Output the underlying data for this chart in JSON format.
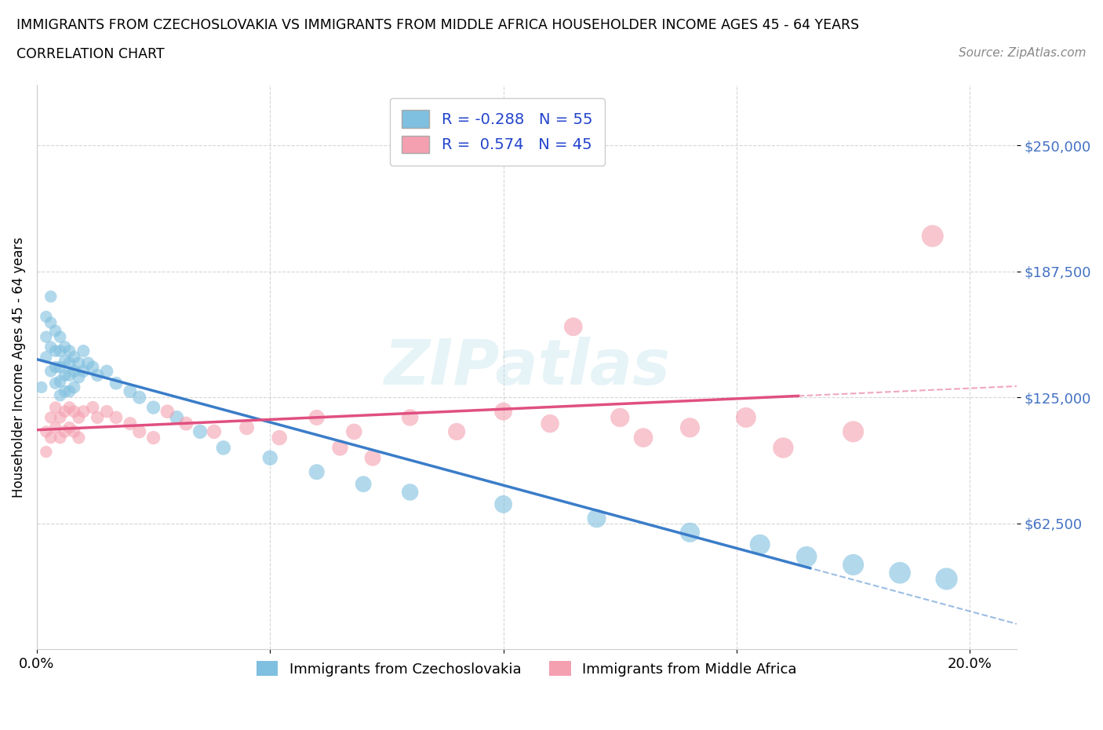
{
  "title_line1": "IMMIGRANTS FROM CZECHOSLOVAKIA VS IMMIGRANTS FROM MIDDLE AFRICA HOUSEHOLDER INCOME AGES 45 - 64 YEARS",
  "title_line2": "CORRELATION CHART",
  "source_text": "Source: ZipAtlas.com",
  "ylabel": "Householder Income Ages 45 - 64 years",
  "xlim": [
    0.0,
    0.21
  ],
  "ylim": [
    0,
    280000
  ],
  "yticks": [
    62500,
    125000,
    187500,
    250000
  ],
  "ytick_labels": [
    "$62,500",
    "$125,000",
    "$187,500",
    "$250,000"
  ],
  "xticks": [
    0.0,
    0.05,
    0.1,
    0.15,
    0.2
  ],
  "xtick_labels": [
    "0.0%",
    "",
    "",
    "",
    "20.0%"
  ],
  "color_czech": "#7fbfdf",
  "color_africa": "#f4a0b0",
  "regression_color_czech": "#3a7dc9",
  "regression_color_africa": "#e05080",
  "watermark_text": "ZIPatlas",
  "czech_x": [
    0.001,
    0.002,
    0.002,
    0.002,
    0.003,
    0.003,
    0.003,
    0.003,
    0.004,
    0.004,
    0.004,
    0.004,
    0.005,
    0.005,
    0.005,
    0.005,
    0.005,
    0.006,
    0.006,
    0.006,
    0.006,
    0.007,
    0.007,
    0.007,
    0.007,
    0.008,
    0.008,
    0.008,
    0.009,
    0.009,
    0.01,
    0.01,
    0.011,
    0.012,
    0.013,
    0.015,
    0.017,
    0.02,
    0.022,
    0.025,
    0.03,
    0.035,
    0.04,
    0.05,
    0.06,
    0.07,
    0.08,
    0.1,
    0.12,
    0.14,
    0.155,
    0.165,
    0.175,
    0.185,
    0.195
  ],
  "czech_y": [
    130000,
    165000,
    155000,
    145000,
    175000,
    162000,
    150000,
    138000,
    158000,
    148000,
    140000,
    132000,
    155000,
    148000,
    140000,
    133000,
    126000,
    150000,
    143000,
    136000,
    128000,
    148000,
    142000,
    136000,
    128000,
    145000,
    138000,
    130000,
    142000,
    135000,
    148000,
    138000,
    142000,
    140000,
    136000,
    138000,
    132000,
    128000,
    125000,
    120000,
    115000,
    108000,
    100000,
    95000,
    88000,
    82000,
    78000,
    72000,
    65000,
    58000,
    52000,
    46000,
    42000,
    38000,
    35000
  ],
  "africa_x": [
    0.002,
    0.002,
    0.003,
    0.003,
    0.004,
    0.004,
    0.005,
    0.005,
    0.006,
    0.006,
    0.007,
    0.007,
    0.008,
    0.008,
    0.009,
    0.009,
    0.01,
    0.012,
    0.013,
    0.015,
    0.017,
    0.02,
    0.022,
    0.025,
    0.028,
    0.032,
    0.038,
    0.045,
    0.052,
    0.06,
    0.065,
    0.068,
    0.072,
    0.08,
    0.09,
    0.1,
    0.11,
    0.115,
    0.125,
    0.13,
    0.14,
    0.152,
    0.16,
    0.175,
    0.192
  ],
  "africa_y": [
    108000,
    98000,
    115000,
    105000,
    120000,
    110000,
    115000,
    105000,
    118000,
    108000,
    120000,
    110000,
    118000,
    108000,
    115000,
    105000,
    118000,
    120000,
    115000,
    118000,
    115000,
    112000,
    108000,
    105000,
    118000,
    112000,
    108000,
    110000,
    105000,
    115000,
    100000,
    108000,
    95000,
    115000,
    108000,
    118000,
    112000,
    160000,
    115000,
    105000,
    110000,
    115000,
    100000,
    108000,
    205000
  ],
  "czech_R": -0.288,
  "czech_N": 55,
  "africa_R": 0.574,
  "africa_N": 45
}
